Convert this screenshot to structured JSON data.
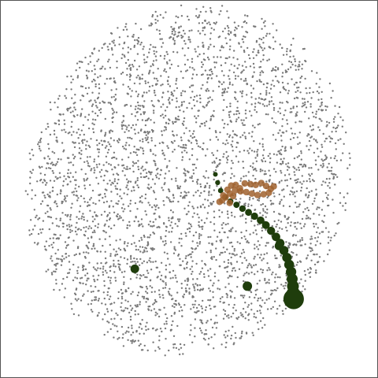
{
  "chart_data": {
    "type": "scatter",
    "title": "",
    "xlabel": "",
    "ylabel": "",
    "grid": false,
    "legend": "none",
    "xlim": [
      0,
      100
    ],
    "ylim": [
      0,
      100
    ],
    "background_points": {
      "description_free": true,
      "count": 3600,
      "color": "#7a7a7a",
      "cloud_center": [
        49.5,
        52.5
      ],
      "cloud_radii": [
        42.5,
        47.5
      ],
      "cloud_rotation_deg": -22
    },
    "series": [
      {
        "color": "#1f3d0c",
        "points": [
          [
            56.8,
            54.1
          ],
          [
            57.4,
            51.9
          ],
          [
            58.2,
            49.8
          ],
          [
            59.4,
            48.1
          ],
          [
            60.8,
            46.9
          ],
          [
            62.4,
            46.0
          ],
          [
            64.0,
            45.0
          ],
          [
            65.6,
            44.0
          ],
          [
            67.2,
            43.0
          ],
          [
            68.8,
            41.9
          ],
          [
            70.2,
            40.6
          ],
          [
            71.6,
            39.1
          ],
          [
            72.9,
            37.5
          ],
          [
            74.0,
            35.8
          ],
          [
            75.0,
            33.9
          ],
          [
            75.8,
            32.0
          ],
          [
            76.4,
            30.1
          ],
          [
            76.9,
            28.2
          ],
          [
            77.2,
            26.3
          ],
          [
            77.4,
            24.4
          ],
          [
            77.5,
            22.5
          ],
          [
            77.6,
            21.0
          ]
        ],
        "sizes": [
          3.0,
          3.2,
          3.4,
          3.6,
          3.8,
          4.0,
          4.2,
          4.4,
          4.6,
          4.8,
          5.0,
          5.2,
          5.4,
          5.6,
          5.8,
          6.0,
          6.3,
          6.6,
          7.0,
          7.5,
          8.5,
          13.0
        ]
      },
      {
        "color": "#1f3d0c",
        "points": [
          [
            35.4,
            29.0
          ],
          [
            65.3,
            24.4
          ],
          [
            73.7,
            35.1
          ]
        ],
        "sizes": [
          5.5,
          6.0,
          5.5
        ]
      },
      {
        "color": "#a0612e",
        "points": [
          [
            57.9,
            46.8
          ],
          [
            58.9,
            48.5
          ],
          [
            60.0,
            50.0
          ],
          [
            61.0,
            51.1
          ],
          [
            62.2,
            51.3
          ],
          [
            63.3,
            50.4
          ],
          [
            64.6,
            51.7
          ],
          [
            66.1,
            51.5
          ],
          [
            67.5,
            51.3
          ],
          [
            69.0,
            51.8
          ],
          [
            70.3,
            51.0
          ],
          [
            71.5,
            50.2
          ],
          [
            72.3,
            50.9
          ],
          [
            71.0,
            49.2
          ],
          [
            69.6,
            48.8
          ],
          [
            68.0,
            48.6
          ],
          [
            66.5,
            49.0
          ],
          [
            65.0,
            49.4
          ],
          [
            63.5,
            49.6
          ],
          [
            62.0,
            49.8
          ],
          [
            60.6,
            49.0
          ],
          [
            59.5,
            48.0
          ],
          [
            58.6,
            47.2
          ],
          [
            61.5,
            48.3
          ],
          [
            60.6,
            46.5
          ]
        ],
        "size": 4.2
      }
    ]
  }
}
